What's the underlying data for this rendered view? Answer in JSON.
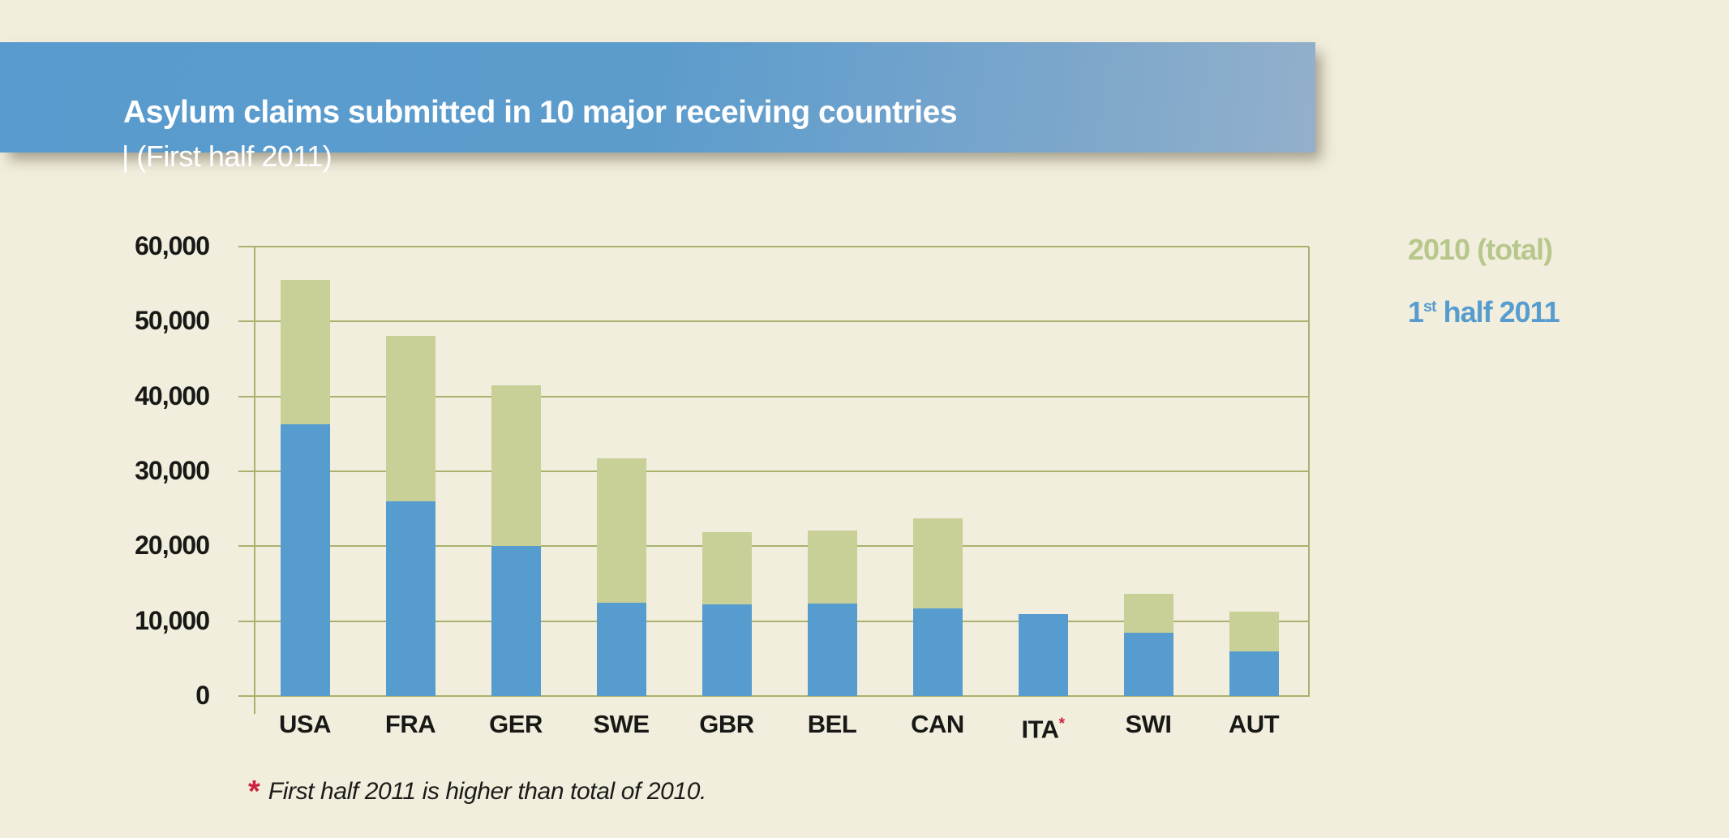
{
  "header": {
    "title": "Asylum claims submitted in 10 major receiving countries",
    "subtitle": "| (First half 2011)"
  },
  "legend": {
    "entries": [
      {
        "label": "2010 (total)",
        "color": "#b7c78c"
      },
      {
        "label_parts": {
          "base": "1",
          "sup": "st",
          "rest": " half 2011"
        },
        "color": "#579ccf"
      }
    ],
    "position": "right"
  },
  "footnote": {
    "marker": "*",
    "text": "First half 2011 is higher than total of 2010."
  },
  "chart_data": {
    "type": "bar",
    "title": "Asylum claims submitted in 10 major receiving countries (First half 2011)",
    "categories": [
      "USA",
      "FRA",
      "GER",
      "SWE",
      "GBR",
      "BEL",
      "CAN",
      "ITA",
      "SWI",
      "AUT"
    ],
    "series": [
      {
        "name": "2010 (total)",
        "color": "#c8cf97",
        "values": [
          55600,
          48100,
          41500,
          31700,
          21900,
          22100,
          23700,
          null,
          13700,
          11300
        ]
      },
      {
        "name": "1st half 2011",
        "color": "#579cce",
        "values": [
          36300,
          26000,
          20000,
          12500,
          12200,
          12300,
          11700,
          10900,
          8400,
          6000
        ]
      }
    ],
    "ylim": [
      0,
      60000
    ],
    "yticks": [
      0,
      10000,
      20000,
      30000,
      40000,
      50000,
      60000
    ],
    "ytick_labels": [
      "0",
      "10,000",
      "20,000",
      "30,000",
      "40,000",
      "50,000",
      "60,000"
    ],
    "xlabel": "",
    "ylabel": "",
    "grid": true,
    "annotated_category": "ITA",
    "annotation_marker": "*",
    "note": "ITA bar shows first half 2011 only; 2010 total is not visible because first half 2011 exceeds it"
  },
  "colors": {
    "background": "#f2eedd",
    "banner_left": "#599bce",
    "banner_right": "#93b0cb",
    "gridline": "#a9b26d",
    "bar_2010": "#c8cf97",
    "bar_2011": "#579cce",
    "asterisk_red": "#ce1f3e",
    "text": "#181816"
  }
}
